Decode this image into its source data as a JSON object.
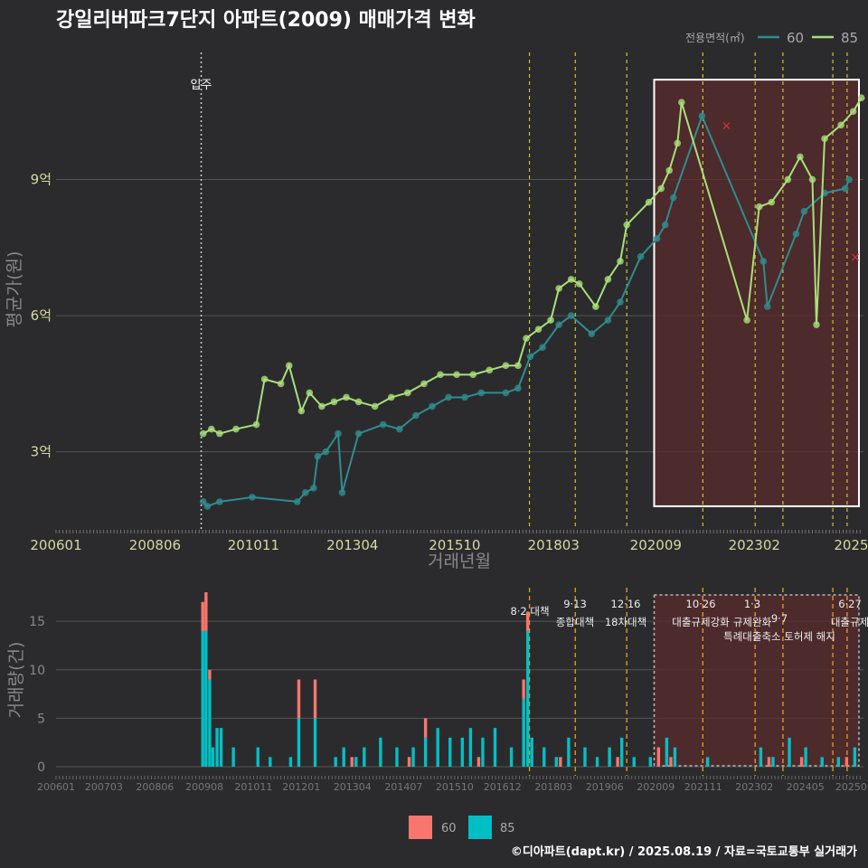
{
  "title": "강일리버파크7단지 아파트(2009) 매매가격 변화",
  "footer": "©디아파트(dapt.kr) / 2025.08.19 / 자료=국토교통부 실거래가",
  "colors": {
    "s60": "#2f8d8f",
    "s85": "#a9e07a",
    "vol60": "#f8766d",
    "vol85": "#00bfc4",
    "policy": "#e8e03a",
    "policy2": "#e8a020",
    "box": "#ffffff",
    "shade": "#5a2b2b"
  },
  "chart_data": [
    {
      "type": "line",
      "title": "강일리버파크7단지 아파트(2009) 매매가격 변화",
      "xlabel": "거래년월",
      "ylabel": "평균가(원)",
      "ylim": [
        1.3,
        11.8
      ],
      "xlim": [
        2006.0,
        2025.75
      ],
      "x_ticks": [
        "200601",
        "200806",
        "201011",
        "201304",
        "201510",
        "201803",
        "202009",
        "202302",
        "2025"
      ],
      "y_ticks": [
        {
          "v": 3,
          "label": "3억"
        },
        {
          "v": 6,
          "label": "6억"
        },
        {
          "v": 9,
          "label": "9억"
        }
      ],
      "legend_title": "전용면적(㎡)",
      "legend": [
        "60",
        "85"
      ],
      "annotation_move_in": {
        "x": 2009.55,
        "label": "입주"
      },
      "policy_lines": [
        2017.58,
        2018.7,
        2019.96,
        2021.82,
        2023.1,
        2023.78,
        2025.0,
        2025.35
      ],
      "highlight_period": [
        2020.63,
        2025.75
      ],
      "series": [
        {
          "name": "60",
          "points": [
            [
              2009.6,
              1.9
            ],
            [
              2009.7,
              1.8
            ],
            [
              2010.0,
              1.9
            ],
            [
              2010.8,
              2.0
            ],
            [
              2011.9,
              1.9
            ],
            [
              2012.1,
              2.1
            ],
            [
              2012.3,
              2.2
            ],
            [
              2012.4,
              2.9
            ],
            [
              2012.6,
              3.0
            ],
            [
              2012.9,
              3.4
            ],
            [
              2013.0,
              2.1
            ],
            [
              2013.4,
              3.4
            ],
            [
              2014.0,
              3.6
            ],
            [
              2014.4,
              3.5
            ],
            [
              2014.8,
              3.8
            ],
            [
              2015.2,
              4.0
            ],
            [
              2015.6,
              4.2
            ],
            [
              2016.0,
              4.2
            ],
            [
              2016.4,
              4.3
            ],
            [
              2017.0,
              4.3
            ],
            [
              2017.3,
              4.4
            ],
            [
              2017.6,
              5.1
            ],
            [
              2017.9,
              5.3
            ],
            [
              2018.3,
              5.8
            ],
            [
              2018.6,
              6.0
            ],
            [
              2019.1,
              5.6
            ],
            [
              2019.5,
              5.9
            ],
            [
              2019.8,
              6.3
            ],
            [
              2020.3,
              7.3
            ],
            [
              2020.7,
              7.7
            ],
            [
              2020.9,
              8.0
            ],
            [
              2021.1,
              8.6
            ],
            [
              2021.8,
              10.4
            ],
            [
              2023.3,
              7.2
            ],
            [
              2023.4,
              6.2
            ],
            [
              2024.1,
              7.8
            ],
            [
              2024.3,
              8.3
            ],
            [
              2024.8,
              8.7
            ],
            [
              2025.3,
              8.8
            ],
            [
              2025.4,
              9.0
            ]
          ]
        },
        {
          "name": "85",
          "points": [
            [
              2009.6,
              3.4
            ],
            [
              2009.8,
              3.5
            ],
            [
              2010.0,
              3.4
            ],
            [
              2010.4,
              3.5
            ],
            [
              2010.9,
              3.6
            ],
            [
              2011.1,
              4.6
            ],
            [
              2011.5,
              4.5
            ],
            [
              2011.7,
              4.9
            ],
            [
              2012.0,
              3.9
            ],
            [
              2012.2,
              4.3
            ],
            [
              2012.5,
              4.0
            ],
            [
              2012.8,
              4.1
            ],
            [
              2013.1,
              4.2
            ],
            [
              2013.4,
              4.1
            ],
            [
              2013.8,
              4.0
            ],
            [
              2014.2,
              4.2
            ],
            [
              2014.6,
              4.3
            ],
            [
              2015.0,
              4.5
            ],
            [
              2015.4,
              4.7
            ],
            [
              2015.8,
              4.7
            ],
            [
              2016.2,
              4.7
            ],
            [
              2016.6,
              4.8
            ],
            [
              2017.0,
              4.9
            ],
            [
              2017.3,
              4.9
            ],
            [
              2017.5,
              5.5
            ],
            [
              2017.8,
              5.7
            ],
            [
              2018.1,
              5.9
            ],
            [
              2018.3,
              6.6
            ],
            [
              2018.6,
              6.8
            ],
            [
              2018.8,
              6.7
            ],
            [
              2019.2,
              6.2
            ],
            [
              2019.5,
              6.8
            ],
            [
              2019.8,
              7.2
            ],
            [
              2019.96,
              8.0
            ],
            [
              2020.5,
              8.5
            ],
            [
              2020.8,
              8.8
            ],
            [
              2021.0,
              9.2
            ],
            [
              2021.2,
              9.8
            ],
            [
              2021.3,
              10.7
            ],
            [
              2022.9,
              5.9
            ],
            [
              2023.2,
              8.4
            ],
            [
              2023.5,
              8.5
            ],
            [
              2023.9,
              9.0
            ],
            [
              2024.2,
              9.5
            ],
            [
              2024.5,
              9.0
            ],
            [
              2024.6,
              5.8
            ],
            [
              2024.8,
              9.9
            ],
            [
              2025.2,
              10.2
            ],
            [
              2025.5,
              10.5
            ],
            [
              2025.7,
              10.8
            ]
          ]
        }
      ]
    },
    {
      "type": "bar",
      "ylabel": "거래량(건)",
      "ylim": [
        0,
        18
      ],
      "y_ticks": [
        0,
        5,
        10,
        15
      ],
      "x_ticks": [
        "200601",
        "200703",
        "200806",
        "200908",
        "201011",
        "201201",
        "201304",
        "201407",
        "201510",
        "201612",
        "201803",
        "201906",
        "202009",
        "202111",
        "202302",
        "202405",
        "20250"
      ],
      "annotations": [
        {
          "x": 2017.58,
          "text": "8·2 대책"
        },
        {
          "x": 2018.7,
          "text": "9·13"
        },
        {
          "x": 2018.7,
          "text": "종합대책"
        },
        {
          "x": 2019.96,
          "text": "12·16"
        },
        {
          "x": 2019.96,
          "text": "18차대책"
        },
        {
          "x": 2021.82,
          "text": "10·26"
        },
        {
          "x": 2021.82,
          "text": "대출규제강화"
        },
        {
          "x": 2023.1,
          "text": "1·3"
        },
        {
          "x": 2023.1,
          "text": "규제완화"
        },
        {
          "x": 2023.78,
          "text": "9·7"
        },
        {
          "x": 2023.78,
          "text": "특례대출축소 토허제 해지"
        },
        {
          "x": 2025.35,
          "text": "6·27"
        },
        {
          "x": 2025.35,
          "text": "대출규제"
        }
      ],
      "series": [
        {
          "name": "60",
          "months": [
            [
              2009.55,
              3
            ],
            [
              2009.63,
              4
            ],
            [
              2009.72,
              1
            ],
            [
              2011.9,
              4
            ],
            [
              2012.3,
              4
            ],
            [
              2013.2,
              1
            ],
            [
              2014.6,
              1
            ],
            [
              2015.0,
              2
            ],
            [
              2016.3,
              1
            ],
            [
              2017.4,
              2
            ],
            [
              2017.5,
              2
            ],
            [
              2018.3,
              1
            ],
            [
              2019.7,
              1
            ],
            [
              2020.7,
              2
            ],
            [
              2021.0,
              1
            ],
            [
              2023.4,
              1
            ],
            [
              2024.2,
              1
            ],
            [
              2025.3,
              1
            ]
          ]
        },
        {
          "name": "85",
          "months": [
            [
              2009.55,
              14
            ],
            [
              2009.63,
              14
            ],
            [
              2009.72,
              9
            ],
            [
              2009.8,
              2
            ],
            [
              2009.9,
              4
            ],
            [
              2010.0,
              4
            ],
            [
              2010.3,
              2
            ],
            [
              2010.9,
              2
            ],
            [
              2011.2,
              1
            ],
            [
              2011.7,
              1
            ],
            [
              2011.9,
              5
            ],
            [
              2012.3,
              5
            ],
            [
              2012.8,
              1
            ],
            [
              2013.0,
              2
            ],
            [
              2013.3,
              1
            ],
            [
              2013.5,
              2
            ],
            [
              2013.9,
              3
            ],
            [
              2014.3,
              2
            ],
            [
              2014.7,
              2
            ],
            [
              2015.0,
              3
            ],
            [
              2015.3,
              4
            ],
            [
              2015.6,
              3
            ],
            [
              2015.9,
              3
            ],
            [
              2016.1,
              4
            ],
            [
              2016.4,
              3
            ],
            [
              2016.7,
              4
            ],
            [
              2017.1,
              2
            ],
            [
              2017.4,
              7
            ],
            [
              2017.5,
              14
            ],
            [
              2017.6,
              3
            ],
            [
              2017.9,
              2
            ],
            [
              2018.2,
              1
            ],
            [
              2018.5,
              3
            ],
            [
              2018.9,
              2
            ],
            [
              2019.2,
              1
            ],
            [
              2019.5,
              2
            ],
            [
              2019.8,
              3
            ],
            [
              2020.1,
              1
            ],
            [
              2020.5,
              1
            ],
            [
              2020.9,
              3
            ],
            [
              2021.1,
              2
            ],
            [
              2021.9,
              1
            ],
            [
              2023.2,
              2
            ],
            [
              2023.5,
              1
            ],
            [
              2023.9,
              3
            ],
            [
              2024.3,
              2
            ],
            [
              2024.7,
              1
            ],
            [
              2025.1,
              1
            ],
            [
              2025.5,
              2
            ]
          ]
        }
      ]
    }
  ]
}
